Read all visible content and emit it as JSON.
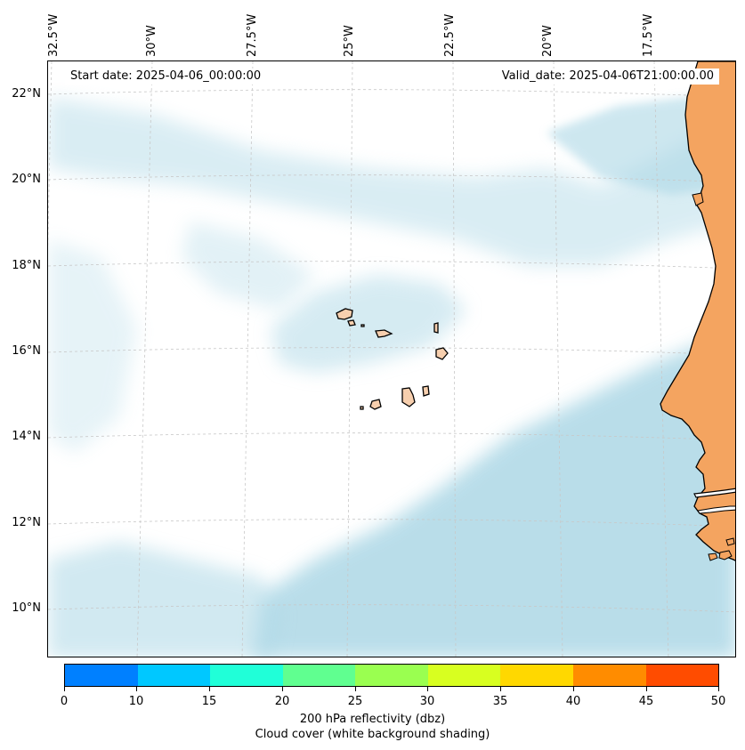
{
  "header": {
    "start_date": "Start date: 2025-04-06_00:00:00",
    "valid_date": "Valid_date: 2025-04-06T21:00:00.00"
  },
  "longitude_labels": [
    "32.5°W",
    "30°W",
    "27.5°W",
    "25°W",
    "22.5°W",
    "20°W",
    "17.5°W"
  ],
  "latitude_labels": [
    "22°N",
    "20°N",
    "18°N",
    "16°N",
    "14°N",
    "12°N",
    "10°N"
  ],
  "colorbar": {
    "ticks": [
      "0",
      "10",
      "15",
      "20",
      "25",
      "30",
      "35",
      "40",
      "45",
      "50"
    ],
    "colors": [
      "#0080ff",
      "#00c8ff",
      "#20ffd8",
      "#60ff90",
      "#9aff50",
      "#d8ff20",
      "#ffd800",
      "#ff8c00",
      "#ff4c00"
    ],
    "label_line1": "200 hPa reflectivity (dbz)",
    "label_line2": "Cloud cover (white background shading)"
  },
  "map_colors": {
    "cloud": "#add8e6",
    "land": "#f4a460",
    "coastline": "#000000",
    "gridline": "#c8c8c8"
  }
}
